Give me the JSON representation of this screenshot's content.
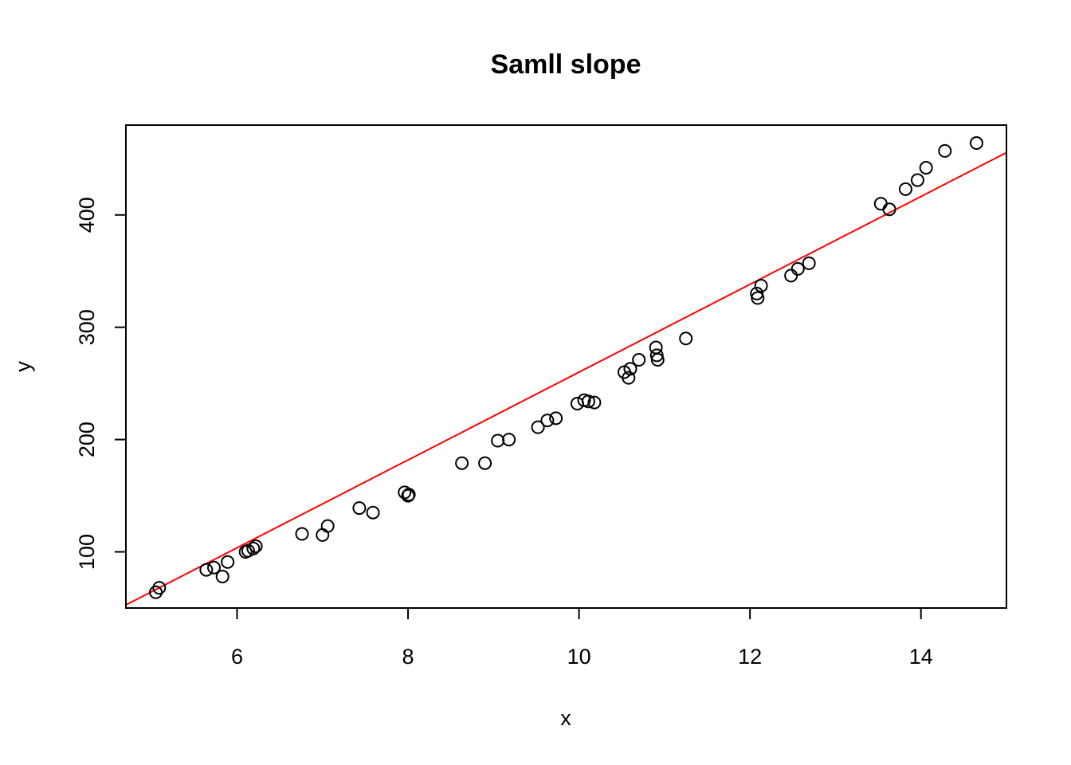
{
  "chart_data": {
    "type": "scatter",
    "title": "Samll slope",
    "xlabel": "x",
    "ylabel": "y",
    "xlim": [
      4.7,
      15.0
    ],
    "ylim": [
      50,
      480
    ],
    "xticks": [
      6,
      8,
      10,
      12,
      14
    ],
    "yticks": [
      100,
      200,
      300,
      400
    ],
    "grid": false,
    "point_color": "#000000",
    "line_color": "#ff0000",
    "points": [
      {
        "x": 5.05,
        "y": 64
      },
      {
        "x": 5.09,
        "y": 68
      },
      {
        "x": 5.64,
        "y": 84
      },
      {
        "x": 5.73,
        "y": 86
      },
      {
        "x": 5.83,
        "y": 78
      },
      {
        "x": 5.89,
        "y": 91
      },
      {
        "x": 6.1,
        "y": 100
      },
      {
        "x": 6.13,
        "y": 101
      },
      {
        "x": 6.19,
        "y": 103
      },
      {
        "x": 6.22,
        "y": 105
      },
      {
        "x": 6.76,
        "y": 116
      },
      {
        "x": 7.0,
        "y": 115
      },
      {
        "x": 7.06,
        "y": 123
      },
      {
        "x": 7.43,
        "y": 139
      },
      {
        "x": 7.59,
        "y": 135
      },
      {
        "x": 7.96,
        "y": 153
      },
      {
        "x": 8.0,
        "y": 150
      },
      {
        "x": 8.01,
        "y": 151
      },
      {
        "x": 8.63,
        "y": 179
      },
      {
        "x": 8.9,
        "y": 179
      },
      {
        "x": 9.05,
        "y": 199
      },
      {
        "x": 9.18,
        "y": 200
      },
      {
        "x": 9.52,
        "y": 211
      },
      {
        "x": 9.63,
        "y": 217
      },
      {
        "x": 9.73,
        "y": 219
      },
      {
        "x": 9.98,
        "y": 232
      },
      {
        "x": 10.06,
        "y": 235
      },
      {
        "x": 10.11,
        "y": 234
      },
      {
        "x": 10.18,
        "y": 233
      },
      {
        "x": 10.53,
        "y": 260
      },
      {
        "x": 10.58,
        "y": 255
      },
      {
        "x": 10.6,
        "y": 263
      },
      {
        "x": 10.7,
        "y": 271
      },
      {
        "x": 10.9,
        "y": 282
      },
      {
        "x": 10.91,
        "y": 275
      },
      {
        "x": 10.92,
        "y": 271
      },
      {
        "x": 11.25,
        "y": 290
      },
      {
        "x": 12.08,
        "y": 330
      },
      {
        "x": 12.09,
        "y": 326
      },
      {
        "x": 12.13,
        "y": 337
      },
      {
        "x": 12.48,
        "y": 346
      },
      {
        "x": 12.56,
        "y": 352
      },
      {
        "x": 12.69,
        "y": 357
      },
      {
        "x": 13.53,
        "y": 410
      },
      {
        "x": 13.63,
        "y": 405
      },
      {
        "x": 13.82,
        "y": 423
      },
      {
        "x": 13.96,
        "y": 431
      },
      {
        "x": 14.06,
        "y": 442
      },
      {
        "x": 14.28,
        "y": 457
      },
      {
        "x": 14.65,
        "y": 464
      }
    ],
    "fit_line": {
      "intercept": -131.0,
      "slope": 39.1
    }
  }
}
